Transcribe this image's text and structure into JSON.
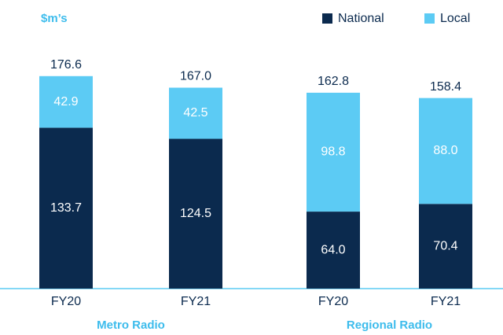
{
  "chart_data": {
    "type": "stacked_bar",
    "y_label": "$m’s",
    "categories": [
      "FY20",
      "FY21",
      "FY20",
      "FY21"
    ],
    "groups": [
      {
        "name": "Metro Radio",
        "span": [
          0,
          1
        ]
      },
      {
        "name": "Regional Radio",
        "span": [
          2,
          3
        ]
      }
    ],
    "series": [
      {
        "name": "National",
        "color": "#0b2a4e",
        "values": [
          133.7,
          124.5,
          64.0,
          70.4
        ],
        "value_labels": [
          "133.7",
          "124.5",
          "64.0",
          "70.4"
        ]
      },
      {
        "name": "Local",
        "color": "#5ccbf4",
        "values": [
          42.9,
          42.5,
          98.8,
          88.0
        ],
        "value_labels": [
          "42.9",
          "42.5",
          "98.8",
          "88.0"
        ]
      }
    ],
    "totals": [
      176.6,
      167.0,
      162.8,
      158.4
    ],
    "total_labels": [
      "176.6",
      "167.0",
      "162.8",
      "158.4"
    ],
    "legend": "top-right"
  }
}
